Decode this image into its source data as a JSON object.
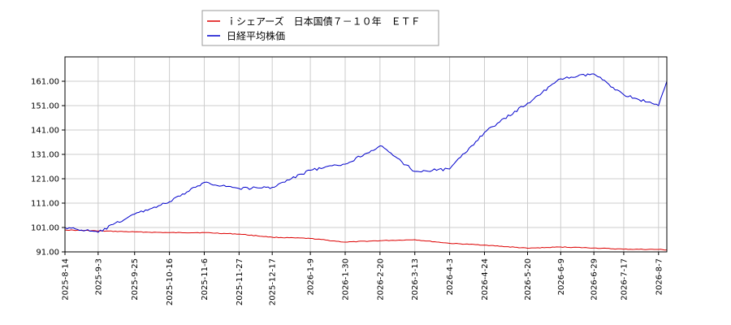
{
  "chart_data": {
    "type": "line",
    "grid": true,
    "legend_placement": "top-left",
    "ylim": [
      91,
      171
    ],
    "y_ticks": [
      "91.00",
      "101.00",
      "111.00",
      "121.00",
      "131.00",
      "141.00",
      "151.00",
      "161.00"
    ],
    "x_ticks": [
      "2025-8-14",
      "2025-9-3",
      "2025-9-25",
      "2025-10-16",
      "2025-11-6",
      "2025-11-27",
      "2025-12-17",
      "2026-1-9",
      "2026-1-30",
      "2026-2-20",
      "2026-3-13",
      "2026-4-3",
      "2026-4-24",
      "2026-5-20",
      "2026-6-9",
      "2026-6-29",
      "2026-7-17",
      "2026-8-7"
    ],
    "x_start": "2025-8-14",
    "x_end": "2026-8-12",
    "series": [
      {
        "name": "ｉシェアーズ　日本国債７－１０年　ＥＴＦ",
        "color": "#dd0000",
        "points": [
          [
            "2025-8-14",
            100.0
          ],
          [
            "2025-9-3",
            99.6
          ],
          [
            "2025-9-25",
            99.2
          ],
          [
            "2025-10-16",
            98.9
          ],
          [
            "2025-11-6",
            98.9
          ],
          [
            "2025-11-27",
            98.3
          ],
          [
            "2025-12-17",
            97.0
          ],
          [
            "2026-1-9",
            96.5
          ],
          [
            "2026-1-30",
            95.0
          ],
          [
            "2026-2-20",
            95.6
          ],
          [
            "2026-3-13",
            96.0
          ],
          [
            "2026-4-3",
            94.5
          ],
          [
            "2026-4-24",
            93.8
          ],
          [
            "2026-5-20",
            92.5
          ],
          [
            "2026-6-9",
            93.0
          ],
          [
            "2026-6-29",
            92.6
          ],
          [
            "2026-7-17",
            92.1
          ],
          [
            "2026-8-7",
            92.0
          ],
          [
            "2026-8-12",
            91.8
          ]
        ]
      },
      {
        "name": "日経平均株価",
        "color": "#0000cc",
        "points": [
          [
            "2025-8-14",
            101.0
          ],
          [
            "2025-9-3",
            99.0
          ],
          [
            "2025-9-25",
            106.5
          ],
          [
            "2025-10-16",
            111.5
          ],
          [
            "2025-11-6",
            119.5
          ],
          [
            "2025-11-27",
            117.0
          ],
          [
            "2025-12-17",
            117.5
          ],
          [
            "2026-1-9",
            124.5
          ],
          [
            "2026-1-30",
            127.0
          ],
          [
            "2026-2-20",
            134.5
          ],
          [
            "2026-3-13",
            124.0
          ],
          [
            "2026-4-3",
            125.0
          ],
          [
            "2026-4-24",
            140.0
          ],
          [
            "2026-5-20",
            152.0
          ],
          [
            "2026-6-9",
            162.0
          ],
          [
            "2026-6-29",
            164.0
          ],
          [
            "2026-7-17",
            155.5
          ],
          [
            "2026-8-7",
            151.0
          ],
          [
            "2026-8-12",
            161.0
          ]
        ]
      }
    ]
  }
}
